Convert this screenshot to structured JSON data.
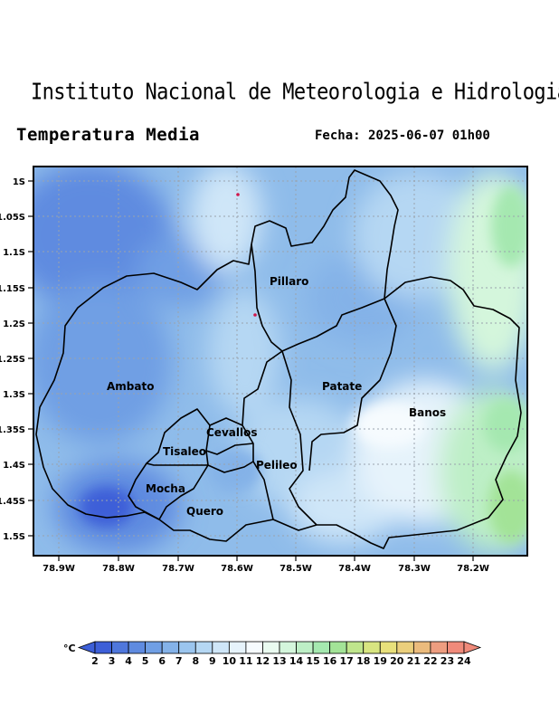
{
  "header": {
    "institute": "Instituto Nacional de Meteorologia e Hidrologia",
    "product": "Temperatura Media",
    "date_label": "Fecha: 2025-06-07 01h00"
  },
  "map": {
    "y_ticks": [
      "1S",
      "1.05S",
      "1.1S",
      "1.15S",
      "1.2S",
      "1.25S",
      "1.3S",
      "1.35S",
      "1.4S",
      "1.45S",
      "1.5S"
    ],
    "x_ticks": [
      "78.9W",
      "78.8W",
      "78.7W",
      "78.6W",
      "78.5W",
      "78.4W",
      "78.3W",
      "78.2W"
    ],
    "regions": [
      "Pillaro",
      "Ambato",
      "Patate",
      "Banos",
      "Cevallos",
      "Tisaleo",
      "Pelileo",
      "Mocha",
      "Quero"
    ]
  },
  "legend": {
    "unit": "°C",
    "values": [
      "2",
      "3",
      "4",
      "5",
      "6",
      "7",
      "8",
      "9",
      "10",
      "11",
      "12",
      "13",
      "14",
      "15",
      "16",
      "17",
      "18",
      "19",
      "20",
      "21",
      "22",
      "23",
      "24"
    ],
    "colors": [
      "#3d5fd8",
      "#4f77dc",
      "#5f8be0",
      "#709fe4",
      "#84b2e8",
      "#9bc5ee",
      "#b5d7f3",
      "#cfe6f8",
      "#e6f3fb",
      "#f6fbfe",
      "#eafbf0",
      "#d4f6dc",
      "#bdefc6",
      "#a5e8b0",
      "#a3e397",
      "#bfe58c",
      "#d8e581",
      "#e8e07b",
      "#ebcf7c",
      "#ebbb7d",
      "#ed9d80",
      "#f08a7a"
    ]
  }
}
